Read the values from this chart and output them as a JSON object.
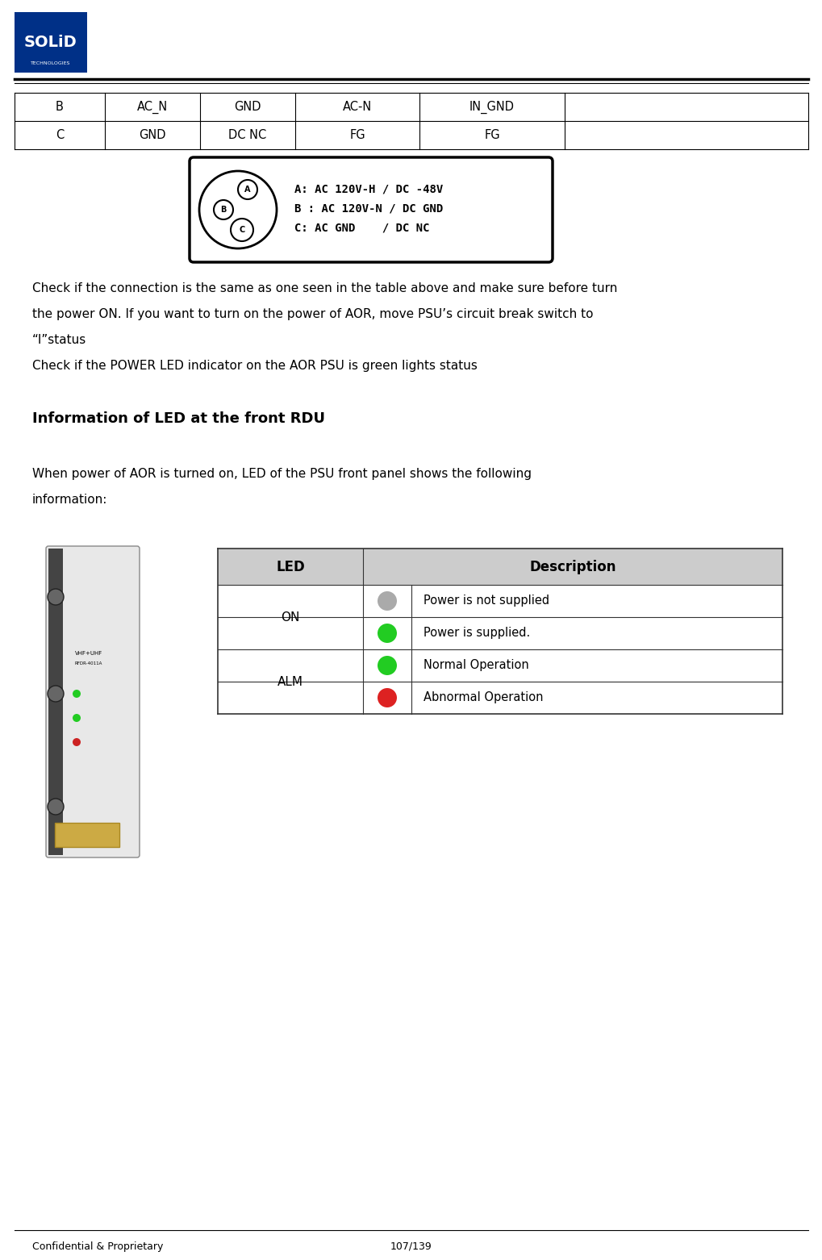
{
  "page_width": 10.2,
  "page_height": 15.62,
  "bg_color": "#ffffff",
  "logo_color_blue": "#003087",
  "footer_text_left": "Confidential & Proprietary",
  "footer_text_center": "107/139",
  "top_table": {
    "rows": [
      [
        "B",
        "AC_N",
        "GND",
        "AC-N",
        "IN_GND",
        ""
      ],
      [
        "C",
        "GND",
        "DC NC",
        "FG",
        "FG",
        ""
      ]
    ]
  },
  "connector_image_text": [
    "A: AC 120V-H / DC -48V",
    "B : AC 120V-N / DC GND",
    "C: AC GND    / DC NC"
  ],
  "body_text": [
    "Check if the connection is the same as one seen in the table above and make sure before turn",
    "the power ON. If you want to turn on the power of AOR, move PSU’s circuit break switch to",
    "“I”status",
    "Check if the POWER LED indicator on the AOR PSU is green lights status"
  ],
  "section_title": "Information of LED at the front RDU",
  "intro_text": [
    "When power of AOR is turned on, LED of the PSU front panel shows the following",
    "information:"
  ],
  "led_table": {
    "rows": [
      {
        "led_group": "ON",
        "color": "#aaaaaa",
        "description": "Power is not supplied"
      },
      {
        "led_group": "ON",
        "color": "#22cc22",
        "description": "Power is supplied."
      },
      {
        "led_group": "ALM",
        "color": "#22cc22",
        "description": "Normal Operation"
      },
      {
        "led_group": "ALM",
        "color": "#dd2222",
        "description": "Abnormal Operation"
      }
    ],
    "header_bg": "#cccccc",
    "border_color": "#333333"
  },
  "text_color": "#000000",
  "body_fontsize": 11,
  "title_fontsize": 13,
  "table_fontsize": 10.5
}
